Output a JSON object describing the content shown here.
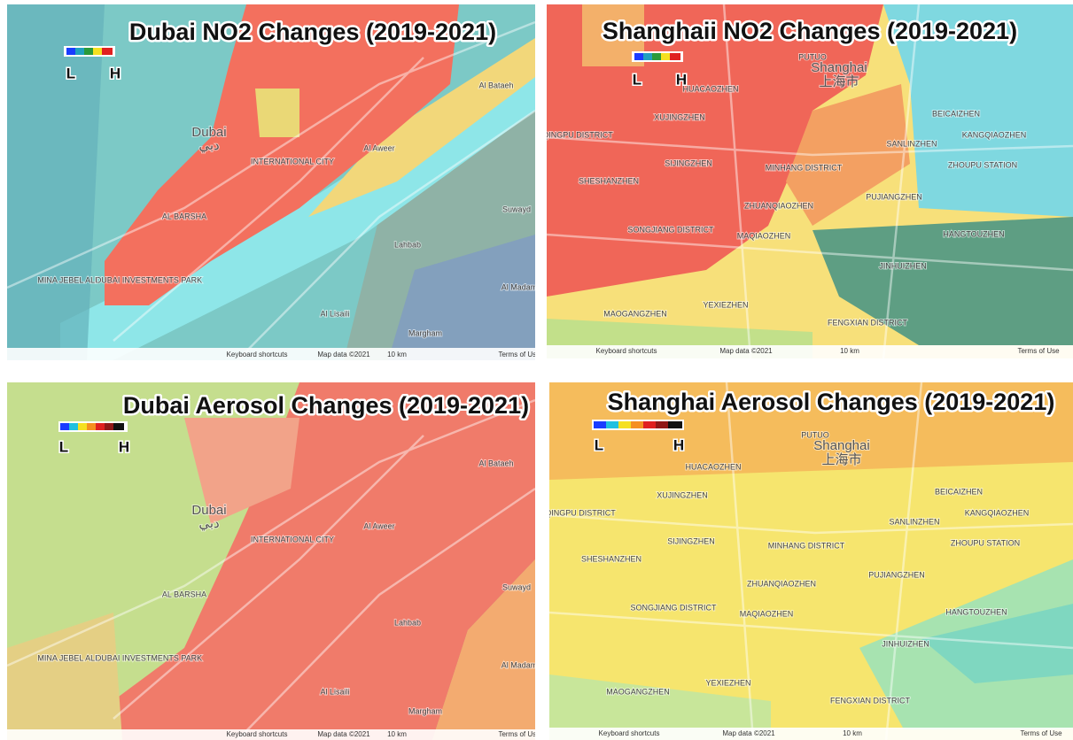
{
  "panels": [
    {
      "title": "Dubai NO2 Changes (2019-2021)",
      "legend": {
        "low": "L",
        "high": "H"
      },
      "places": [
        "Dubai",
        "دبي",
        "AL BARSHA",
        "INTERNATIONAL CITY",
        "Al Aweer",
        "Lahbab",
        "Al Lisaili",
        "Margham",
        "Suwayd",
        "Al Madam",
        "Al Bataeh",
        "DUBAI INVESTMENTS PARK",
        "MINA JEBEL ALI"
      ],
      "footer": [
        "Keyboard shortcuts",
        "Map data ©2021",
        "10 km",
        "Terms of Use"
      ]
    },
    {
      "title": "Shanghaii NO2 Changes (2019-2021)",
      "legend": {
        "low": "L",
        "high": "H"
      },
      "places": [
        "Shanghai",
        "上海市",
        "PUTUO",
        "HUACAOZHEN",
        "QINGPU DISTRICT",
        "XUJINGZHEN",
        "SIJINGZHEN",
        "SHESHANZHEN",
        "SONGJIANG DISTRICT",
        "MINHANG DISTRICT",
        "ZHUANQIAOZHEN",
        "MAQIAOZHEN",
        "BEICAIZHEN",
        "SANLINZHEN",
        "KANGQIAOZHEN",
        "ZHOUPU STATION",
        "PUJIANGZHEN",
        "HANGTOUZHEN",
        "JINHUIZHEN",
        "YEXIEZHEN",
        "MAOGANGZHEN",
        "FENGXIAN DISTRICT"
      ],
      "footer": [
        "Keyboard shortcuts",
        "Map data ©2021",
        "10 km",
        "Terms of Use"
      ]
    },
    {
      "title": "Dubai Aerosol Changes (2019-2021)",
      "legend": {
        "low": "L",
        "high": "H"
      },
      "places": [
        "Dubai",
        "دبي",
        "AL BARSHA",
        "INTERNATIONAL CITY",
        "Al Aweer",
        "Lahbab",
        "Al Lisaili",
        "Margham",
        "Suwayd",
        "Al Madam",
        "Al Bataeh",
        "DUBAI INVESTMENTS PARK",
        "MINA JEBEL ALI"
      ],
      "footer": [
        "Keyboard shortcuts",
        "Map data ©2021",
        "10 km",
        "Terms of Use"
      ]
    },
    {
      "title": "Shanghai Aerosol Changes (2019-2021)",
      "legend": {
        "low": "L",
        "high": "H"
      },
      "places": [
        "Shanghai",
        "上海市",
        "PUTUO",
        "HUACAOZHEN",
        "QINGPU DISTRICT",
        "XUJINGZHEN",
        "SIJINGZHEN",
        "SHESHANZHEN",
        "SONGJIANG DISTRICT",
        "MINHANG DISTRICT",
        "ZHUANQIAOZHEN",
        "MAQIAOZHEN",
        "BEICAIZHEN",
        "SANLINZHEN",
        "KANGQIAOZHEN",
        "ZHOUPU STATION",
        "PUJIANGZHEN",
        "HANGTOUZHEN",
        "JINHUIZHEN",
        "YEXIEZHEN",
        "MAOGANGZHEN",
        "FENGXIAN DISTRICT"
      ],
      "footer": [
        "Keyboard shortcuts",
        "Map data ©2021",
        "10 km",
        "Terms of Use"
      ]
    }
  ]
}
